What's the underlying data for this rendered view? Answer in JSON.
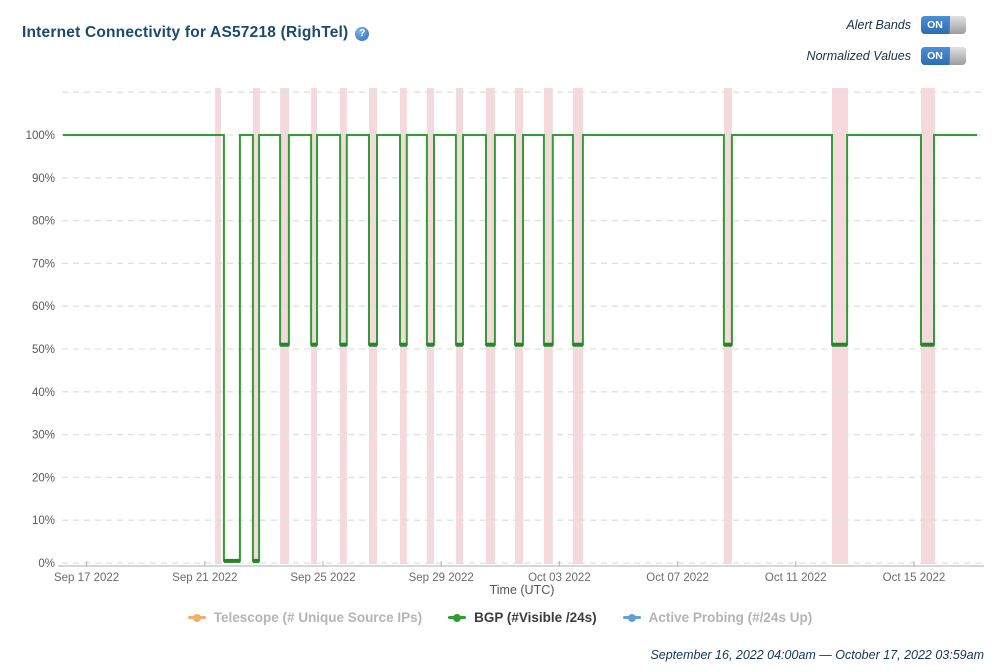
{
  "header": {
    "title": "Internet Connectivity for AS57218 (RighTel)",
    "help_glyph": "?"
  },
  "controls": {
    "alert_bands": {
      "label": "Alert Bands",
      "state": "ON"
    },
    "normalized_values": {
      "label": "Normalized Values",
      "state": "ON"
    }
  },
  "legend": {
    "items": [
      {
        "label": "Telescope (# Unique Source IPs)",
        "color": "#f3ae6d",
        "active": false
      },
      {
        "label": "BGP (#Visible /24s)",
        "color": "#2f9e34",
        "active": true
      },
      {
        "label": "Active Probing (#/24s Up)",
        "color": "#64a0d8",
        "active": false
      }
    ]
  },
  "footer": {
    "range": "September 16, 2022 04:00am — October 17, 2022 03:59am"
  },
  "chart_data": {
    "type": "line",
    "title": "Internet Connectivity for AS57218 (RighTel)",
    "xlabel": "Time (UTC)",
    "ylabel": "",
    "ylim": [
      0,
      110
    ],
    "y_ticks": [
      0,
      10,
      20,
      30,
      40,
      50,
      60,
      70,
      80,
      90,
      100
    ],
    "y_tick_suffix": "%",
    "grid": "dashed-horizontal",
    "x_domain_days": 31,
    "x_domain_note": "t in days since 2022-09-16 04:00 UTC",
    "x_ticks": [
      {
        "t": 0.833,
        "label": "Sep 17 2022"
      },
      {
        "t": 4.833,
        "label": "Sep 21 2022"
      },
      {
        "t": 8.833,
        "label": "Sep 25 2022"
      },
      {
        "t": 12.833,
        "label": "Sep 29 2022"
      },
      {
        "t": 16.833,
        "label": "Oct 03 2022"
      },
      {
        "t": 20.833,
        "label": "Oct 07 2022"
      },
      {
        "t": 24.833,
        "label": "Oct 11 2022"
      },
      {
        "t": 28.833,
        "label": "Oct 15 2022"
      }
    ],
    "series": [
      {
        "name": "Telescope (# Unique Source IPs)",
        "color": "#f3ae6d",
        "visible": false
      },
      {
        "name": "BGP (#Visible /24s)",
        "color": "#2f9e34",
        "visible": true,
        "baseline": 100,
        "line_end_t": 30.97,
        "dips": [
          {
            "start": 5.48,
            "end": 6.02,
            "low": 0.5
          },
          {
            "start": 6.46,
            "end": 6.67,
            "low": 0.5
          },
          {
            "start": 7.38,
            "end": 7.68,
            "low": 51
          },
          {
            "start": 8.43,
            "end": 8.63,
            "low": 51
          },
          {
            "start": 9.41,
            "end": 9.64,
            "low": 51
          },
          {
            "start": 10.39,
            "end": 10.66,
            "low": 51
          },
          {
            "start": 11.44,
            "end": 11.67,
            "low": 51
          },
          {
            "start": 12.35,
            "end": 12.59,
            "low": 51
          },
          {
            "start": 13.33,
            "end": 13.57,
            "low": 51
          },
          {
            "start": 14.35,
            "end": 14.65,
            "low": 51
          },
          {
            "start": 15.33,
            "end": 15.6,
            "low": 51
          },
          {
            "start": 16.31,
            "end": 16.61,
            "low": 51
          },
          {
            "start": 17.29,
            "end": 17.63,
            "low": 51
          },
          {
            "start": 22.4,
            "end": 22.67,
            "low": 51
          },
          {
            "start": 26.06,
            "end": 26.57,
            "low": 51
          },
          {
            "start": 29.07,
            "end": 29.51,
            "low": 51
          }
        ]
      },
      {
        "name": "Active Probing (#/24s Up)",
        "color": "#64a0d8",
        "visible": false
      }
    ],
    "alert_bands": {
      "color": "#f5d9dc",
      "intervals": [
        [
          5.18,
          5.38
        ],
        [
          6.46,
          6.7
        ],
        [
          7.38,
          7.68
        ],
        [
          8.43,
          8.63
        ],
        [
          9.41,
          9.64
        ],
        [
          10.39,
          10.66
        ],
        [
          11.44,
          11.67
        ],
        [
          12.35,
          12.59
        ],
        [
          13.33,
          13.57
        ],
        [
          14.35,
          14.65
        ],
        [
          15.33,
          15.6
        ],
        [
          16.31,
          16.61
        ],
        [
          17.29,
          17.63
        ],
        [
          22.4,
          22.67
        ],
        [
          26.06,
          26.6
        ],
        [
          29.07,
          29.54
        ]
      ]
    }
  }
}
